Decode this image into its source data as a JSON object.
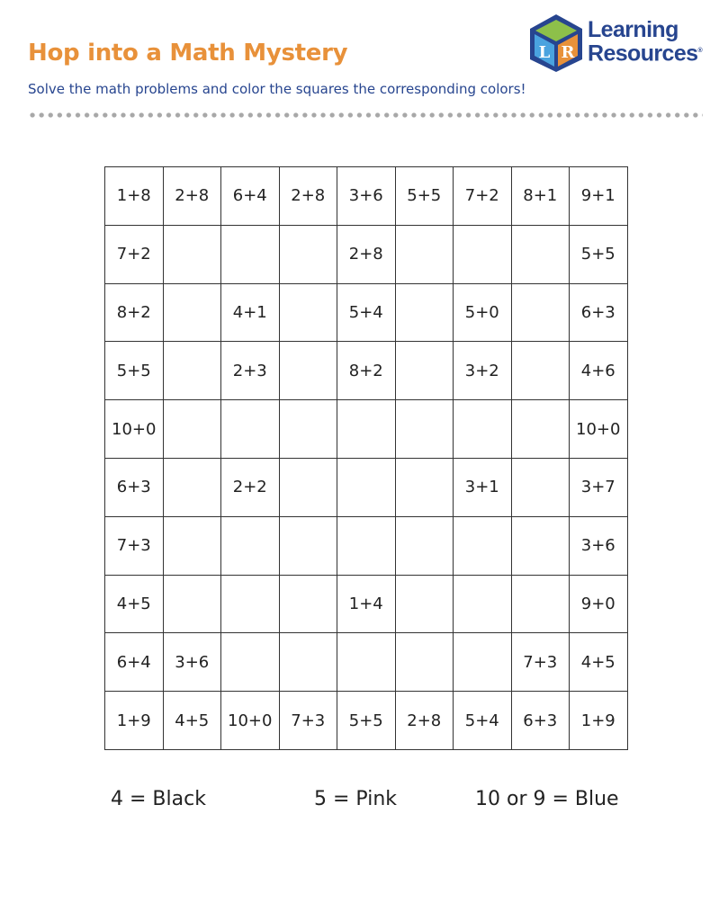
{
  "header": {
    "title": "Hop into a Math Mystery",
    "subtitle": "Solve the math problems and color the squares the corresponding colors!",
    "title_color": "#e8913a",
    "subtitle_color": "#27458f"
  },
  "logo": {
    "line1": "Learning",
    "line2": "Resources",
    "mark": "®",
    "cube_letters": "LR"
  },
  "grid": {
    "rows": [
      [
        "1+8",
        "2+8",
        "6+4",
        "2+8",
        "3+6",
        "5+5",
        "7+2",
        "8+1",
        "9+1"
      ],
      [
        "7+2",
        "",
        "",
        "",
        "2+8",
        "",
        "",
        "",
        "5+5"
      ],
      [
        "8+2",
        "",
        "4+1",
        "",
        "5+4",
        "",
        "5+0",
        "",
        "6+3"
      ],
      [
        "5+5",
        "",
        "2+3",
        "",
        "8+2",
        "",
        "3+2",
        "",
        "4+6"
      ],
      [
        "10+0",
        "",
        "",
        "",
        "",
        "",
        "",
        "",
        "10+0"
      ],
      [
        "6+3",
        "",
        "2+2",
        "",
        "",
        "",
        "3+1",
        "",
        "3+7"
      ],
      [
        "7+3",
        "",
        "",
        "",
        "",
        "",
        "",
        "",
        "3+6"
      ],
      [
        "4+5",
        "",
        "",
        "",
        "1+4",
        "",
        "",
        "",
        "9+0"
      ],
      [
        "6+4",
        "3+6",
        "",
        "",
        "",
        "",
        "",
        "7+3",
        "4+5"
      ],
      [
        "1+9",
        "4+5",
        "10+0",
        "7+3",
        "5+5",
        "2+8",
        "5+4",
        "6+3",
        "1+9"
      ]
    ]
  },
  "key": [
    {
      "label": "4 = Black"
    },
    {
      "label": "5 = Pink"
    },
    {
      "label": "10 or 9 = Blue"
    }
  ]
}
